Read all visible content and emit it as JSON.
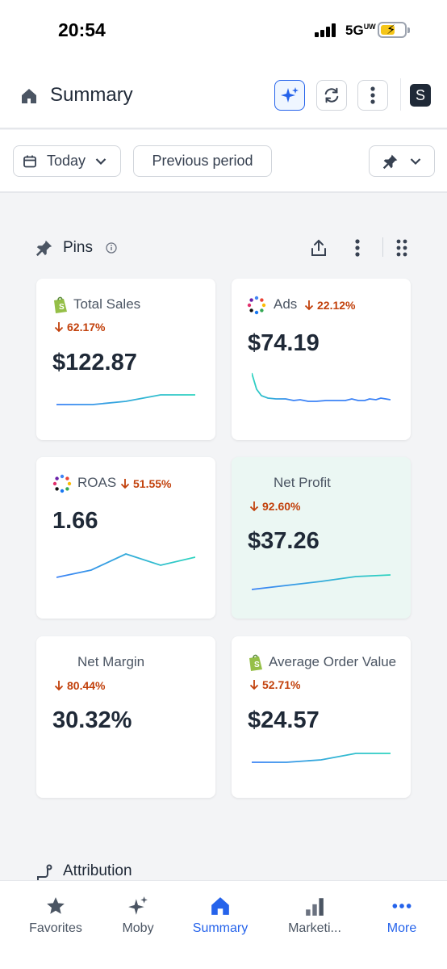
{
  "status_bar": {
    "time": "20:54",
    "network": "5G"
  },
  "header": {
    "title": "Summary",
    "avatar_letter": "S"
  },
  "filters": {
    "date_label": "Today",
    "compare_label": "Previous period"
  },
  "pins": {
    "title": "Pins"
  },
  "cards": [
    {
      "title": "Total Sales",
      "change": "62.17%",
      "value": "$122.87",
      "source": "shopify-icon"
    },
    {
      "title": "Ads",
      "change": "22.12%",
      "value": "$74.19",
      "source": "multi-dot-icon"
    },
    {
      "title": "ROAS",
      "change": "51.55%",
      "value": "1.66",
      "source": "multi-dot-icon"
    },
    {
      "title": "Net Profit",
      "change": "92.60%",
      "value": "$37.26",
      "source": "none"
    },
    {
      "title": "Net Margin",
      "change": "80.44%",
      "value": "30.32%",
      "source": "none"
    },
    {
      "title": "Average Order Value",
      "change": "52.71%",
      "value": "$24.57",
      "source": "shopify-icon"
    }
  ],
  "sections": {
    "attribution": "Attribution"
  },
  "nav": [
    {
      "label": "Favorites",
      "icon": "star-icon"
    },
    {
      "label": "Moby",
      "icon": "sparkle-icon"
    },
    {
      "label": "Summary",
      "icon": "home-icon",
      "active": true
    },
    {
      "label": "Marketi...",
      "icon": "bar-chart-icon"
    },
    {
      "label": "More",
      "icon": "more-dots-icon",
      "active": true
    }
  ],
  "colors": {
    "accent": "#2563eb",
    "negative": "#c2410c",
    "spark_start": "#3b82f6",
    "spark_end": "#2dd4bf",
    "highlight_card": "#ebf7f3"
  }
}
